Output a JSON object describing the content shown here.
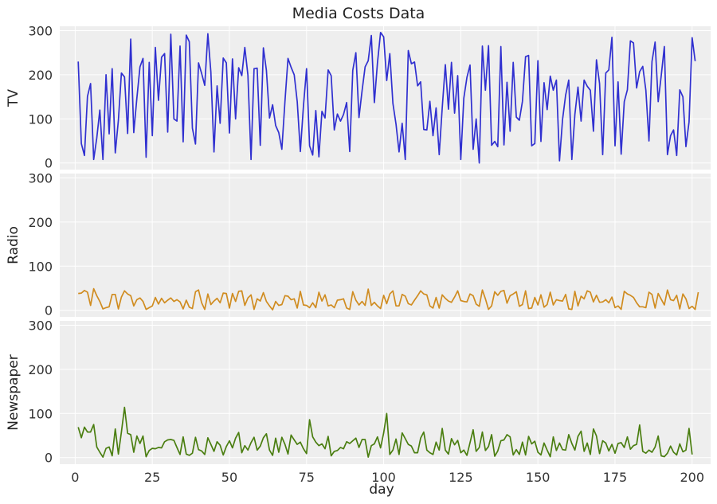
{
  "chart_data": {
    "type": "line",
    "title": "Media Costs Data",
    "xlabel": "day",
    "x_ticks": [
      0,
      25,
      50,
      75,
      100,
      125,
      150,
      175,
      200
    ],
    "y_ticks": [
      0,
      100,
      200,
      300
    ],
    "xlim": [
      -5,
      206
    ],
    "ylim": [
      -15,
      310
    ],
    "grid": true,
    "x_start": 1,
    "panels": [
      {
        "name": "TV",
        "ylabel": "TV",
        "color": "#3030d0",
        "values": [
          230,
          44,
          17,
          151,
          180,
          8,
          57,
          120,
          8,
          200,
          66,
          214,
          23,
          97,
          204,
          195,
          67,
          281,
          69,
          147,
          218,
          237,
          13,
          228,
          62,
          262,
          142,
          240,
          248,
          70,
          292,
          100,
          95,
          265,
          48,
          290,
          275,
          79,
          43,
          227,
          203,
          176,
          293,
          206,
          25,
          175,
          90,
          238,
          227,
          68,
          236,
          100,
          216,
          198,
          262,
          199,
          8,
          214,
          215,
          40,
          261,
          210,
          102,
          132,
          85,
          69,
          31,
          140,
          237,
          217,
          200,
          139,
          26,
          129,
          214,
          39,
          18,
          119,
          14,
          117,
          102,
          211,
          198,
          75,
          111,
          95,
          110,
          137,
          26,
          210,
          250,
          103,
          164,
          218,
          232,
          289,
          137,
          227,
          296,
          286,
          187,
          248,
          135,
          88,
          25,
          90,
          8,
          255,
          225,
          229,
          175,
          184,
          76,
          75,
          140,
          62,
          125,
          19,
          125,
          223,
          122,
          228,
          113,
          198,
          8,
          147,
          194,
          222,
          31,
          100,
          0,
          265,
          165,
          266,
          40,
          49,
          37,
          264,
          41,
          183,
          72,
          228,
          104,
          97,
          140,
          241,
          244,
          39,
          44,
          232,
          49,
          182,
          121,
          197,
          165,
          188,
          5,
          98,
          154,
          188,
          8,
          110,
          172,
          95,
          188,
          174,
          165,
          72,
          234,
          180,
          19,
          204,
          211,
          285,
          39,
          184,
          20,
          139,
          166,
          277,
          272,
          170,
          207,
          219,
          165,
          50,
          230,
          274,
          139,
          198,
          264,
          19,
          62,
          75,
          17,
          166,
          150,
          37,
          93,
          284,
          231
        ]
      },
      {
        "name": "Radio",
        "ylabel": "Radio",
        "color": "#d08c20",
        "values": [
          38,
          39,
          45,
          41,
          11,
          49,
          33,
          20,
          3,
          6,
          8,
          36,
          36,
          3,
          30,
          44,
          37,
          33,
          10,
          24,
          28,
          20,
          2,
          6,
          10,
          29,
          14,
          27,
          17,
          23,
          28,
          20,
          24,
          19,
          3,
          23,
          7,
          4,
          42,
          46,
          17,
          2,
          37,
          13,
          21,
          27,
          17,
          39,
          38,
          5,
          38,
          20,
          43,
          44,
          11,
          28,
          35,
          2,
          26,
          21,
          40,
          20,
          10,
          1,
          20,
          11,
          13,
          33,
          32,
          24,
          26,
          5,
          43,
          12,
          11,
          6,
          17,
          6,
          41,
          21,
          35,
          10,
          12,
          6,
          23,
          24,
          26,
          5,
          2,
          42,
          23,
          12,
          20,
          11,
          48,
          11,
          18,
          10,
          4,
          34,
          15,
          37,
          44,
          10,
          10,
          36,
          32,
          15,
          12,
          23,
          33,
          44,
          37,
          35,
          10,
          5,
          29,
          5,
          35,
          27,
          21,
          18,
          30,
          44,
          22,
          20,
          19,
          37,
          33,
          14,
          9,
          46,
          26,
          2,
          10,
          42,
          34,
          43,
          45,
          16,
          33,
          37,
          42,
          9,
          13,
          44,
          4,
          5,
          29,
          12,
          35,
          7,
          13,
          41,
          12,
          24,
          22,
          21,
          36,
          3,
          2,
          43,
          10,
          32,
          26,
          44,
          41,
          19,
          34,
          18,
          19,
          24,
          17,
          30,
          6,
          10,
          2,
          43,
          37,
          34,
          29,
          17,
          8,
          8,
          6,
          41,
          36,
          5,
          38,
          25,
          12,
          46,
          24,
          22,
          34,
          3,
          37,
          26,
          4,
          9,
          2,
          41
        ]
      },
      {
        "name": "Newspaper",
        "ylabel": "Newspaper",
        "color": "#4a7e10",
        "values": [
          69,
          45,
          69,
          58,
          58,
          75,
          24,
          12,
          1,
          21,
          24,
          4,
          65,
          8,
          58,
          114,
          55,
          52,
          12,
          49,
          32,
          49,
          2,
          16,
          21,
          20,
          23,
          22,
          36,
          40,
          41,
          39,
          23,
          7,
          47,
          8,
          5,
          10,
          46,
          18,
          15,
          7,
          45,
          30,
          14,
          36,
          28,
          6,
          25,
          38,
          22,
          44,
          57,
          11,
          27,
          17,
          34,
          46,
          17,
          26,
          45,
          54,
          17,
          5,
          44,
          12,
          46,
          30,
          8,
          51,
          40,
          30,
          35,
          20,
          9,
          86,
          47,
          35,
          27,
          31,
          20,
          48,
          4,
          14,
          16,
          23,
          20,
          36,
          32,
          38,
          44,
          23,
          41,
          41,
          1,
          27,
          31,
          47,
          22,
          56,
          100,
          7,
          17,
          42,
          7,
          56,
          43,
          30,
          26,
          11,
          11,
          44,
          58,
          17,
          11,
          7,
          35,
          17,
          66,
          17,
          8,
          43,
          29,
          39,
          11,
          17,
          5,
          34,
          63,
          14,
          23,
          58,
          16,
          25,
          52,
          3,
          15,
          38,
          40,
          52,
          47,
          6,
          18,
          7,
          35,
          6,
          48,
          31,
          37,
          12,
          6,
          33,
          17,
          2,
          47,
          16,
          33,
          18,
          17,
          52,
          32,
          17,
          48,
          60,
          14,
          33,
          7,
          65,
          49,
          9,
          38,
          33,
          15,
          30,
          10,
          32,
          34,
          23,
          47,
          19,
          27,
          30,
          74,
          14,
          10,
          17,
          12,
          24,
          49,
          4,
          2,
          10,
          26,
          12,
          6,
          31,
          13,
          17,
          66,
          7
        ]
      }
    ]
  }
}
